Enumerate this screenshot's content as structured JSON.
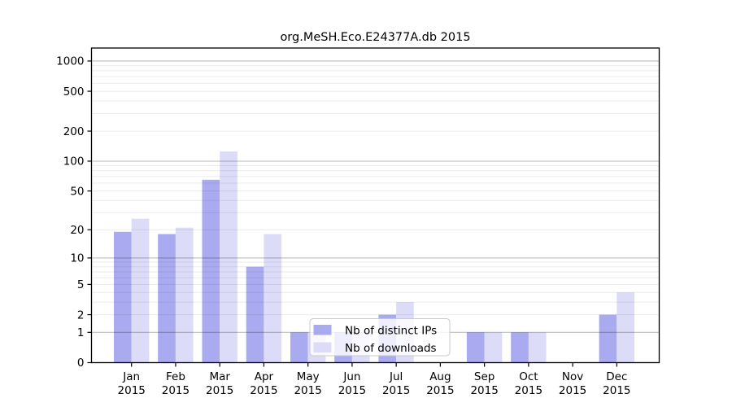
{
  "chart_data": {
    "type": "bar",
    "title": "org.MeSH.Eco.E24377A.db 2015",
    "categories": [
      "Jan",
      "Feb",
      "Mar",
      "Apr",
      "May",
      "Jun",
      "Jul",
      "Aug",
      "Sep",
      "Oct",
      "Nov",
      "Dec"
    ],
    "x_sublabel": "2015",
    "series": [
      {
        "name": "Nb of distinct IPs",
        "color": "#aaaaf0",
        "values": [
          19,
          18,
          65,
          8,
          1,
          1,
          2,
          0,
          1,
          1,
          0,
          2
        ]
      },
      {
        "name": "Nb of downloads",
        "color": "#dcdcf8",
        "values": [
          26,
          21,
          125,
          18,
          1,
          1,
          3,
          0,
          1,
          1,
          0,
          4
        ]
      }
    ],
    "y_axis": {
      "scale": "log10(value+1)",
      "tick_values": [
        0,
        1,
        2,
        5,
        10,
        20,
        50,
        100,
        200,
        500,
        1000
      ],
      "major_grid_values": [
        1,
        10,
        100,
        1000
      ],
      "ylim": [
        0,
        1250
      ]
    },
    "legend": {
      "entries": [
        "Nb of distinct IPs",
        "Nb of downloads"
      ],
      "position": "bottom-center"
    },
    "colors": {
      "background": "#ffffff",
      "spine": "#000000",
      "minor_grid": "rgba(0,0,0,0.08)",
      "major_grid": "rgba(0,0,0,0.26)",
      "legend_border": "#c8c8c8",
      "legend_fill": "#ffffff"
    }
  }
}
